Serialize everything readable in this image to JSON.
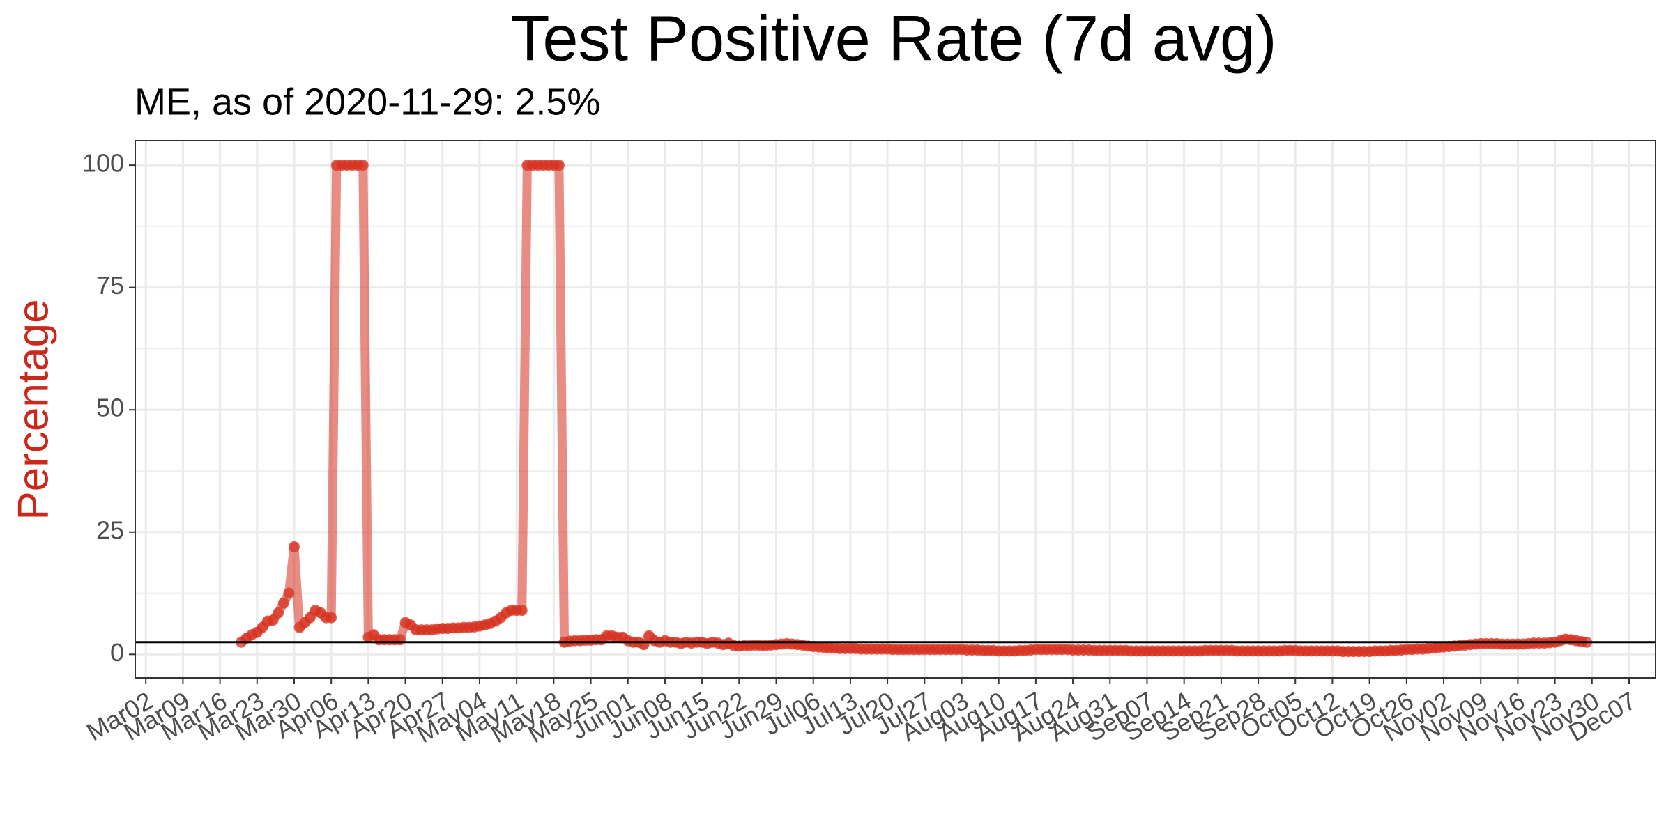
{
  "chart_data": {
    "type": "line",
    "title": "Test Positive Rate (7d avg)",
    "subtitle": "ME, as of 2020-11-29:  2.5%",
    "ylabel": "Percentage",
    "color": "#d7301f",
    "hline": 2.5,
    "grid": true,
    "xlim": [
      "Feb29",
      "Dec12"
    ],
    "ylim": [
      -4.8,
      105
    ],
    "yticks": [
      0,
      25,
      50,
      75,
      100
    ],
    "xticks": [
      "Mar02",
      "Mar09",
      "Mar16",
      "Mar23",
      "Mar30",
      "Apr06",
      "Apr13",
      "Apr20",
      "Apr27",
      "May04",
      "May11",
      "May18",
      "May25",
      "Jun01",
      "Jun08",
      "Jun15",
      "Jun22",
      "Jun29",
      "Jul06",
      "Jul13",
      "Jul20",
      "Jul27",
      "Aug03",
      "Aug10",
      "Aug17",
      "Aug24",
      "Aug31",
      "Sep07",
      "Sep14",
      "Sep21",
      "Sep28",
      "Oct05",
      "Oct12",
      "Oct19",
      "Oct26",
      "Nov02",
      "Nov09",
      "Nov16",
      "Nov23",
      "Nov30",
      "Dec07"
    ],
    "x": [
      "Mar20",
      "Mar21",
      "Mar22",
      "Mar23",
      "Mar24",
      "Mar25",
      "Mar26",
      "Mar27",
      "Mar28",
      "Mar29",
      "Mar30",
      "Mar31",
      "Apr01",
      "Apr02",
      "Apr03",
      "Apr04",
      "Apr05",
      "Apr06",
      "Apr07",
      "Apr08",
      "Apr09",
      "Apr10",
      "Apr11",
      "Apr12",
      "Apr13",
      "Apr14",
      "Apr15",
      "Apr16",
      "Apr17",
      "Apr18",
      "Apr19",
      "Apr20",
      "Apr21",
      "Apr22",
      "Apr23",
      "Apr24",
      "Apr25",
      "Apr26",
      "Apr27",
      "Apr28",
      "Apr29",
      "Apr30",
      "May01",
      "May02",
      "May03",
      "May04",
      "May05",
      "May06",
      "May07",
      "May08",
      "May09",
      "May10",
      "May11",
      "May12",
      "May13",
      "May14",
      "May15",
      "May16",
      "May17",
      "May18",
      "May19",
      "May20",
      "May21",
      "May22",
      "May23",
      "May24",
      "May25",
      "May26",
      "May27",
      "May28",
      "May29",
      "May30",
      "May31",
      "Jun01",
      "Jun02",
      "Jun03",
      "Jun04",
      "Jun05",
      "Jun06",
      "Jun07",
      "Jun08",
      "Jun09",
      "Jun10",
      "Jun11",
      "Jun12",
      "Jun13",
      "Jun14",
      "Jun15",
      "Jun16",
      "Jun17",
      "Jun18",
      "Jun19",
      "Jun20",
      "Jun21",
      "Jun22",
      "Jun23",
      "Jun24",
      "Jun25",
      "Jun26",
      "Jun27",
      "Jun28",
      "Jun29",
      "Jun30",
      "Jul01",
      "Jul02",
      "Jul03",
      "Jul04",
      "Jul05",
      "Jul06",
      "Jul07",
      "Jul08",
      "Jul09",
      "Jul10",
      "Jul11",
      "Jul12",
      "Jul13",
      "Jul14",
      "Jul15",
      "Jul16",
      "Jul17",
      "Jul18",
      "Jul19",
      "Jul20",
      "Jul21",
      "Jul22",
      "Jul23",
      "Jul24",
      "Jul25",
      "Jul26",
      "Jul27",
      "Jul28",
      "Jul29",
      "Jul30",
      "Jul31",
      "Aug01",
      "Aug02",
      "Aug03",
      "Aug04",
      "Aug05",
      "Aug06",
      "Aug07",
      "Aug08",
      "Aug09",
      "Aug10",
      "Aug11",
      "Aug12",
      "Aug13",
      "Aug14",
      "Aug15",
      "Aug16",
      "Aug17",
      "Aug18",
      "Aug19",
      "Aug20",
      "Aug21",
      "Aug22",
      "Aug23",
      "Aug24",
      "Aug25",
      "Aug26",
      "Aug27",
      "Aug28",
      "Aug29",
      "Aug30",
      "Aug31",
      "Sep01",
      "Sep02",
      "Sep03",
      "Sep04",
      "Sep05",
      "Sep06",
      "Sep07",
      "Sep08",
      "Sep09",
      "Sep10",
      "Sep11",
      "Sep12",
      "Sep13",
      "Sep14",
      "Sep15",
      "Sep16",
      "Sep17",
      "Sep18",
      "Sep19",
      "Sep20",
      "Sep21",
      "Sep22",
      "Sep23",
      "Sep24",
      "Sep25",
      "Sep26",
      "Sep27",
      "Sep28",
      "Sep29",
      "Sep30",
      "Oct01",
      "Oct02",
      "Oct03",
      "Oct04",
      "Oct05",
      "Oct06",
      "Oct07",
      "Oct08",
      "Oct09",
      "Oct10",
      "Oct11",
      "Oct12",
      "Oct13",
      "Oct14",
      "Oct15",
      "Oct16",
      "Oct17",
      "Oct18",
      "Oct19",
      "Oct20",
      "Oct21",
      "Oct22",
      "Oct23",
      "Oct24",
      "Oct25",
      "Oct26",
      "Oct27",
      "Oct28",
      "Oct29",
      "Oct30",
      "Oct31",
      "Nov01",
      "Nov02",
      "Nov03",
      "Nov04",
      "Nov05",
      "Nov06",
      "Nov07",
      "Nov08",
      "Nov09",
      "Nov10",
      "Nov11",
      "Nov12",
      "Nov13",
      "Nov14",
      "Nov15",
      "Nov16",
      "Nov17",
      "Nov18",
      "Nov19",
      "Nov20",
      "Nov21",
      "Nov22",
      "Nov23",
      "Nov24",
      "Nov25",
      "Nov26",
      "Nov27",
      "Nov28",
      "Nov29"
    ],
    "values": [
      2.5,
      3.3,
      4,
      4.5,
      5.5,
      6.8,
      7,
      8.5,
      10.5,
      12.5,
      22,
      5.5,
      6.5,
      7.5,
      9,
      8.5,
      7.5,
      7.5,
      100,
      100,
      100,
      100,
      100,
      100,
      3.5,
      4,
      3,
      3,
      3,
      3,
      3,
      6.5,
      6,
      5,
      5,
      5,
      5,
      5.2,
      5.3,
      5.3,
      5.4,
      5.4,
      5.5,
      5.5,
      5.6,
      5.8,
      6,
      6.3,
      6.8,
      7.5,
      8.5,
      9,
      9,
      9,
      100,
      100,
      100,
      100,
      100,
      100,
      100,
      2.5,
      2.7,
      2.8,
      2.8,
      2.9,
      2.9,
      3,
      3,
      3.8,
      3.8,
      3.5,
      3.5,
      2.8,
      2.5,
      2.5,
      2,
      3.8,
      2.8,
      2.5,
      2.8,
      2.5,
      2.5,
      2.2,
      2.5,
      2.3,
      2.5,
      2.5,
      2.2,
      2.5,
      2.3,
      2,
      2.3,
      1.8,
      1.7,
      1.8,
      1.8,
      1.9,
      1.8,
      1.8,
      1.9,
      2,
      2.1,
      2.2,
      2.1,
      2,
      1.9,
      1.7,
      1.6,
      1.5,
      1.4,
      1.3,
      1.3,
      1.2,
      1.2,
      1.2,
      1.2,
      1.1,
      1.1,
      1.1,
      1.1,
      1.1,
      1.1,
      1,
      1,
      1,
      1,
      1,
      1,
      1,
      1,
      1,
      1,
      1,
      1,
      1,
      1,
      0.9,
      0.9,
      0.9,
      0.8,
      0.8,
      0.8,
      0.7,
      0.7,
      0.7,
      0.7,
      0.8,
      0.8,
      0.9,
      1,
      1,
      1,
      1,
      1,
      1,
      1,
      0.9,
      0.9,
      0.9,
      0.9,
      0.8,
      0.8,
      0.8,
      0.8,
      0.8,
      0.8,
      0.8,
      0.7,
      0.7,
      0.7,
      0.7,
      0.7,
      0.7,
      0.7,
      0.7,
      0.7,
      0.7,
      0.7,
      0.7,
      0.7,
      0.7,
      0.8,
      0.8,
      0.8,
      0.8,
      0.8,
      0.8,
      0.7,
      0.7,
      0.7,
      0.7,
      0.7,
      0.7,
      0.7,
      0.7,
      0.7,
      0.8,
      0.8,
      0.8,
      0.7,
      0.7,
      0.7,
      0.7,
      0.7,
      0.7,
      0.7,
      0.7,
      0.6,
      0.6,
      0.6,
      0.6,
      0.6,
      0.6,
      0.7,
      0.7,
      0.7,
      0.8,
      0.8,
      0.9,
      1,
      1,
      1.1,
      1.1,
      1.2,
      1.3,
      1.4,
      1.5,
      1.6,
      1.7,
      1.8,
      1.9,
      2,
      2.1,
      2.2,
      2.2,
      2.2,
      2.2,
      2.1,
      2.1,
      2.1,
      2.1,
      2.1,
      2.2,
      2.3,
      2.3,
      2.3,
      2.4,
      2.5,
      2.8,
      3.1,
      3,
      2.8,
      2.6,
      2.5
    ]
  }
}
